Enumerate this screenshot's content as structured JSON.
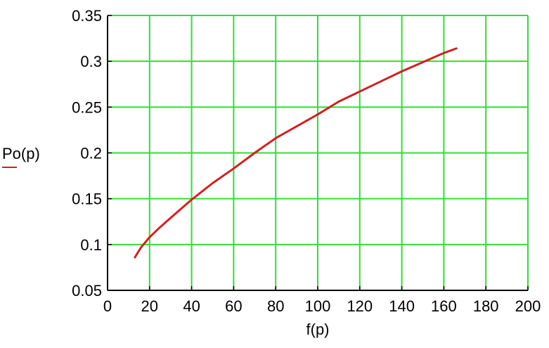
{
  "chart_data": {
    "type": "line",
    "title": "",
    "xlabel": "f(p)",
    "ylabel": "Po(p)",
    "xlim": [
      0,
      200
    ],
    "ylim": [
      0.05,
      0.35
    ],
    "x_ticks": [
      0,
      20,
      40,
      60,
      80,
      100,
      120,
      140,
      160,
      180,
      200
    ],
    "y_ticks": [
      0.05,
      0.1,
      0.15,
      0.2,
      0.25,
      0.3,
      0.35
    ],
    "x_tick_labels": [
      "0",
      "20",
      "40",
      "60",
      "80",
      "100",
      "120",
      "140",
      "160",
      "180",
      "200"
    ],
    "y_tick_labels": [
      "0.05",
      "0.1",
      "0.15",
      "0.2",
      "0.25",
      "0.3",
      "0.35"
    ],
    "grid": true,
    "colors": {
      "grid": "#33dd33",
      "line": "#cc2222",
      "axis": "#000000",
      "ylabel_underline": "#cc2222"
    },
    "series": [
      {
        "x": [
          13,
          16,
          20,
          25,
          30,
          35,
          40,
          45,
          50,
          60,
          70,
          80,
          90,
          100,
          110,
          120,
          130,
          140,
          150,
          160,
          166
        ],
        "y": [
          0.086,
          0.097,
          0.108,
          0.119,
          0.129,
          0.139,
          0.149,
          0.158,
          0.167,
          0.183,
          0.2,
          0.216,
          0.229,
          0.242,
          0.256,
          0.267,
          0.278,
          0.289,
          0.299,
          0.309,
          0.314
        ]
      }
    ]
  }
}
